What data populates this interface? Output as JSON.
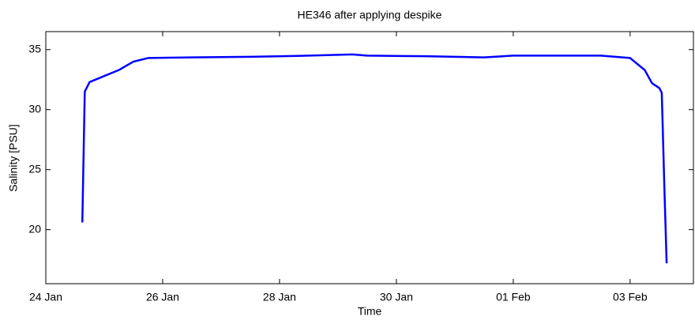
{
  "chart_data": {
    "type": "line",
    "title": "HE346 after applying despike",
    "xlabel": "Time",
    "ylabel": "Salinity [PSU]",
    "x": [
      "24 Jan 15:00",
      "24 Jan 16:00",
      "24 Jan 18:00",
      "25 Jan 00:00",
      "25 Jan 06:00",
      "25 Jan 12:00",
      "25 Jan 18:00",
      "26 Jan 12:00",
      "27 Jan 12:00",
      "28 Jan 12:00",
      "29 Jan 06:00",
      "29 Jan 12:00",
      "30 Jan 12:00",
      "31 Jan 12:00",
      "01 Feb 00:00",
      "01 Feb 12:00",
      "02 Feb 12:00",
      "03 Feb 00:00",
      "03 Feb 06:00",
      "03 Feb 09:00",
      "03 Feb 12:00",
      "03 Feb 13:00",
      "03 Feb 14:00",
      "03 Feb 15:00"
    ],
    "series": [
      {
        "name": "Salinity",
        "color": "#0000ff",
        "values": [
          20.6,
          31.5,
          32.3,
          32.8,
          33.3,
          34.0,
          34.3,
          34.35,
          34.4,
          34.5,
          34.6,
          34.5,
          34.45,
          34.35,
          34.5,
          34.5,
          34.5,
          34.3,
          33.3,
          32.2,
          31.8,
          31.4,
          24,
          17.2
        ]
      }
    ],
    "xlim": [
      "24 Jan 00:00",
      "04 Feb 02:00"
    ],
    "xticks": [
      "24 Jan",
      "26 Jan",
      "28 Jan",
      "30 Jan",
      "01 Feb",
      "03 Feb"
    ],
    "ylim": [
      15.5,
      36.5
    ],
    "yticks": [
      20,
      25,
      30,
      35
    ],
    "grid": false
  }
}
